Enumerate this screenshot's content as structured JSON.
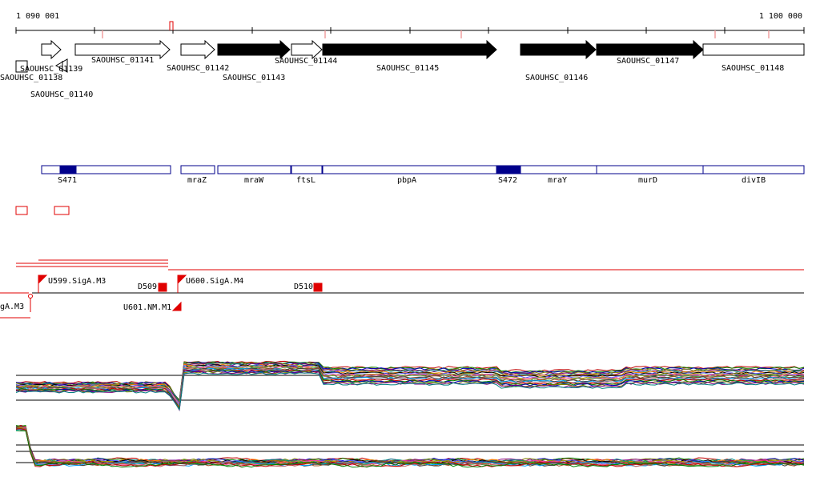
{
  "coordinates": {
    "start": "1 090 001",
    "end": "1 100 000"
  },
  "genes": [
    {
      "label": "SAOUHSC_01138",
      "strand": "-",
      "fill": "white"
    },
    {
      "label": "SAOUHSC_01139",
      "strand": "+",
      "fill": "white"
    },
    {
      "label": "SAOUHSC_01140",
      "strand": "-",
      "fill": "white"
    },
    {
      "label": "SAOUHSC_01141",
      "strand": "+",
      "fill": "white"
    },
    {
      "label": "SAOUHSC_01142",
      "strand": "+",
      "fill": "white"
    },
    {
      "label": "SAOUHSC_01143",
      "strand": "+",
      "fill": "black"
    },
    {
      "label": "SAOUHSC_01144",
      "strand": "+",
      "fill": "white"
    },
    {
      "label": "SAOUHSC_01145",
      "strand": "+",
      "fill": "black"
    },
    {
      "label": "SAOUHSC_01146",
      "strand": "+",
      "fill": "black"
    },
    {
      "label": "SAOUHSC_01147",
      "strand": "+",
      "fill": "black"
    },
    {
      "label": "SAOUHSC_01148",
      "strand": "+",
      "fill": "white"
    }
  ],
  "features": [
    {
      "label": "S471",
      "highlighted": true
    },
    {
      "label": "mraZ",
      "highlighted": false
    },
    {
      "label": "mraW",
      "highlighted": false
    },
    {
      "label": "ftsL",
      "highlighted": false
    },
    {
      "label": "pbpA",
      "highlighted": false
    },
    {
      "label": "S472",
      "highlighted": true
    },
    {
      "label": "mraY",
      "highlighted": false
    },
    {
      "label": "murD",
      "highlighted": false
    },
    {
      "label": "divIB",
      "highlighted": false
    }
  ],
  "transcription_units": [
    {
      "label": "U599.SigA.M3"
    },
    {
      "label": "D509"
    },
    {
      "label": "U600.SigA.M4"
    },
    {
      "label": "D510"
    },
    {
      "label": "U601.NM.M1"
    },
    {
      "label": "gA.M3"
    }
  ],
  "colors": {
    "gene_outline": "#000000",
    "feature_outline": "#00008b",
    "feature_highlight": "#00008b",
    "signal_red": "#e00000"
  }
}
